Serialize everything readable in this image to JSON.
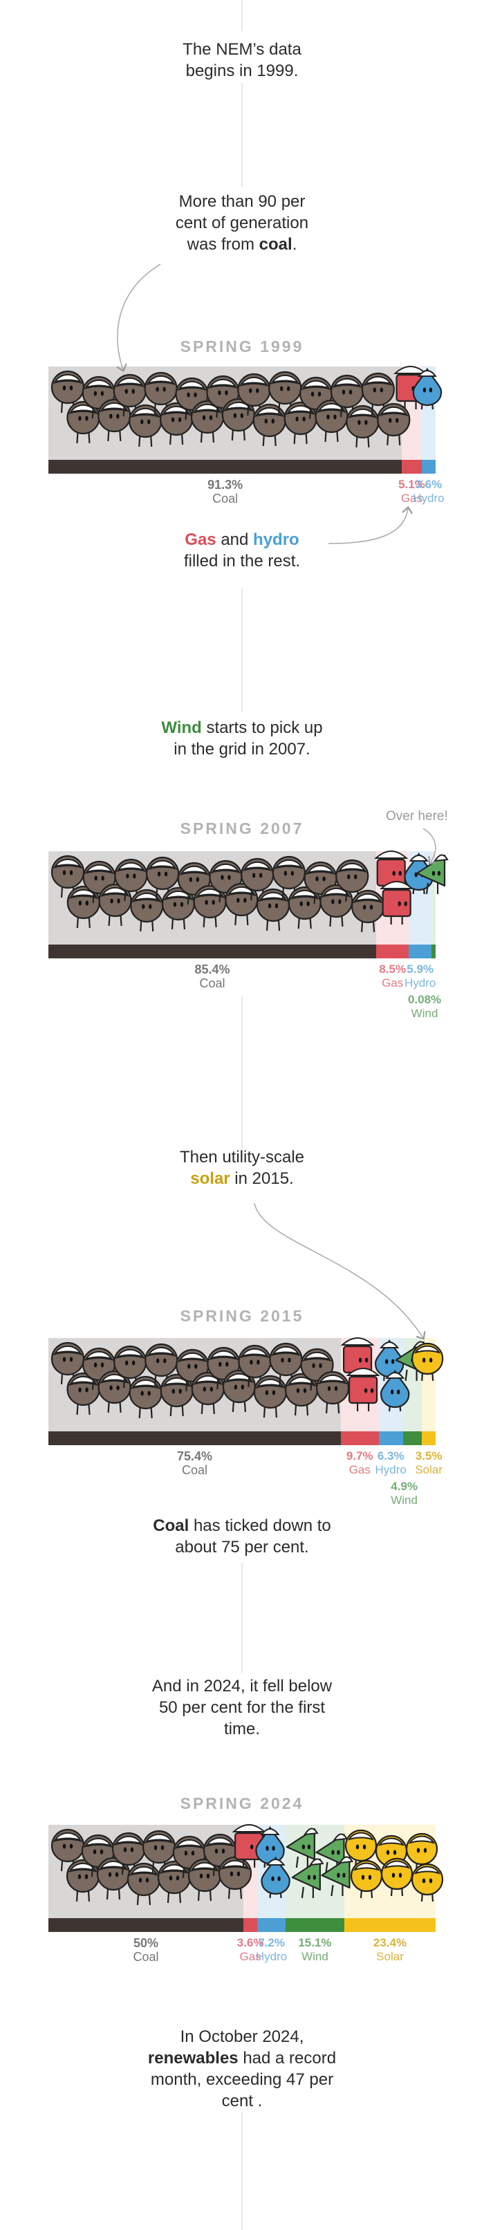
{
  "colors": {
    "coal": "#3e3532",
    "coal_bg": "#d9d6d6",
    "coal_body": "#7a6a60",
    "gas": "#dc4e58",
    "gas_bg": "#fbe4e6",
    "gas_label": "#e27a84",
    "hydro": "#4b9fd5",
    "hydro_bg": "#dfeef8",
    "hydro_label": "#7db7de",
    "wind": "#3e8e3e",
    "wind_bg": "#e3efe3",
    "wind_label": "#76ad76",
    "solar": "#f5c21b",
    "solar_bg": "#fdf6d9",
    "solar_label": "#dcb23c"
  },
  "intro": {
    "l1": "The NEM’s data",
    "l2": "begins in 1999."
  },
  "coal_note": {
    "l1": "More than 90 per",
    "l2": "cent of generation",
    "l3_pre": "was from ",
    "l3_bold": "coal",
    "l3_post": "."
  },
  "gas_hydro_note": {
    "gas": "Gas",
    "and": " and ",
    "hydro": "hydro",
    "l2": "filled in the rest."
  },
  "wind_note": {
    "wind": "Wind",
    "l1_post": " starts to pick up",
    "l2": "in the grid in 2007."
  },
  "over_here": "Over here!",
  "solar_note": {
    "l1": "Then utility-scale",
    "solar": "solar",
    "l2_post": " in 2015."
  },
  "coal_down_note": {
    "coal": "Coal",
    "l1_post": " has ticked down to",
    "l2": "about 75 per cent."
  },
  "note_2024": {
    "l1": "And in 2024, it fell below",
    "l2": "50 per cent for the first",
    "l3": "time."
  },
  "final_note": {
    "l1": "In October 2024,",
    "bold": "renewables",
    "l2_post": " had a record",
    "l3": "month, exceeding 47 per",
    "l4": "cent ."
  },
  "charts": [
    {
      "season": "SPRING 1999",
      "segments": [
        {
          "key": "coal",
          "name": "Coal",
          "pct": "91.3%",
          "value": 91.3
        },
        {
          "key": "gas",
          "name": "Gas",
          "pct": "5.1%",
          "value": 5.1
        },
        {
          "key": "hydro",
          "name": "Hydro",
          "pct": "3.6%",
          "value": 3.6
        }
      ]
    },
    {
      "season": "SPRING 2007",
      "segments": [
        {
          "key": "coal",
          "name": "Coal",
          "pct": "85.4%",
          "value": 85.4
        },
        {
          "key": "gas",
          "name": "Gas",
          "pct": "8.5%",
          "value": 8.5
        },
        {
          "key": "hydro",
          "name": "Hydro",
          "pct": "5.9%",
          "value": 5.9
        },
        {
          "key": "wind",
          "name": "Wind",
          "pct": "0.08%",
          "value": 0.08
        }
      ]
    },
    {
      "season": "SPRING 2015",
      "segments": [
        {
          "key": "coal",
          "name": "Coal",
          "pct": "75.4%",
          "value": 75.4
        },
        {
          "key": "gas",
          "name": "Gas",
          "pct": "9.7%",
          "value": 9.7
        },
        {
          "key": "hydro",
          "name": "Hydro",
          "pct": "6.3%",
          "value": 6.3
        },
        {
          "key": "wind",
          "name": "Wind",
          "pct": "4.9%",
          "value": 4.9
        },
        {
          "key": "solar",
          "name": "Solar",
          "pct": "3.5%",
          "value": 3.5
        }
      ]
    },
    {
      "season": "SPRING 2024",
      "segments": [
        {
          "key": "coal",
          "name": "Coal",
          "pct": "50%",
          "value": 50
        },
        {
          "key": "gas",
          "name": "Gas",
          "pct": "3.6%",
          "value": 3.6
        },
        {
          "key": "hydro",
          "name": "Hydro",
          "pct": "7.2%",
          "value": 7.2
        },
        {
          "key": "wind",
          "name": "Wind",
          "pct": "15.1%",
          "value": 15.1
        },
        {
          "key": "solar",
          "name": "Solar",
          "pct": "23.4%",
          "value": 23.4
        }
      ]
    }
  ]
}
